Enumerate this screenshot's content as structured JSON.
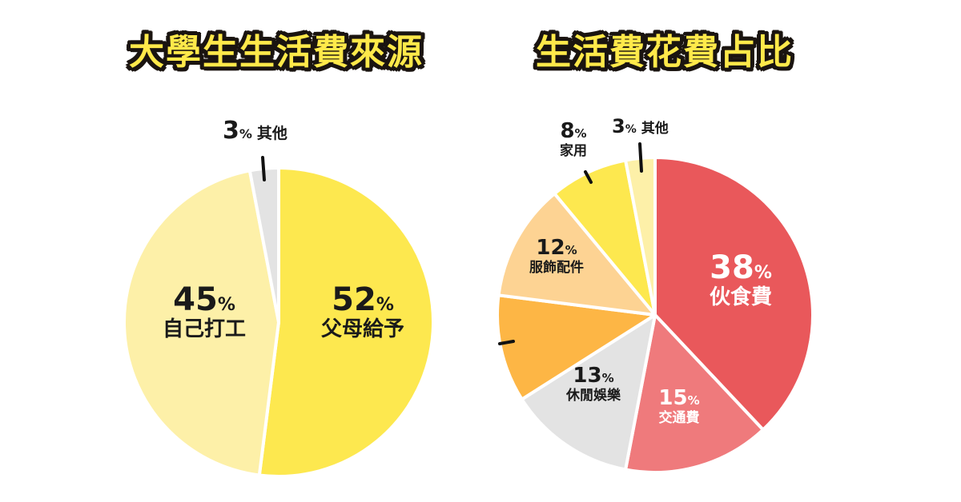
{
  "chart_data": [
    {
      "type": "pie",
      "title": "大學生生活費來源",
      "start_angle": "12 o'clock",
      "direction": "clockwise",
      "slices": [
        {
          "label": "父母給予",
          "value": 52,
          "color": "#fde84f"
        },
        {
          "label": "自己打工",
          "value": 45,
          "color": "#fdf0a8"
        },
        {
          "label": "其他",
          "value": 3,
          "color": "#e3e3e3"
        }
      ],
      "unit": "%"
    },
    {
      "type": "pie",
      "title": "生活費花費占比",
      "start_angle": "12 o'clock",
      "direction": "clockwise",
      "slices": [
        {
          "label": "伙食費",
          "value": 38,
          "color": "#e9585b"
        },
        {
          "label": "交通費",
          "value": 15,
          "color": "#ef7a7c"
        },
        {
          "label": "休閒娛樂",
          "value": 13,
          "color": "#e3e3e3"
        },
        {
          "label": "",
          "value": 11,
          "color": "#fdb645"
        },
        {
          "label": "服飾配件",
          "value": 12,
          "color": "#fdd393"
        },
        {
          "label": "家用",
          "value": 8,
          "color": "#fde84f"
        },
        {
          "label": "其他",
          "value": 3,
          "color": "#fdf0a8"
        }
      ],
      "unit": "%"
    }
  ],
  "left": {
    "title": "大學生生活費來源",
    "labels": {
      "parents": {
        "num": "52",
        "pct": "%",
        "name": "父母給予"
      },
      "work": {
        "num": "45",
        "pct": "%",
        "name": "自己打工"
      },
      "other": {
        "num": "3",
        "pct": "%",
        "name": "其他"
      }
    }
  },
  "right": {
    "title": "生活費花費占比",
    "labels": {
      "food": {
        "num": "38",
        "pct": "%",
        "name": "伙食費"
      },
      "transport": {
        "num": "15",
        "pct": "%",
        "name": "交通費"
      },
      "leisure": {
        "num": "13",
        "pct": "%",
        "name": "休閒娛樂"
      },
      "clothing": {
        "num": "12",
        "pct": "%",
        "name": "服飾配件"
      },
      "household": {
        "num": "8",
        "pct": "%",
        "name": "家用"
      },
      "other": {
        "num": "3",
        "pct": "%",
        "name": "其他"
      }
    }
  }
}
